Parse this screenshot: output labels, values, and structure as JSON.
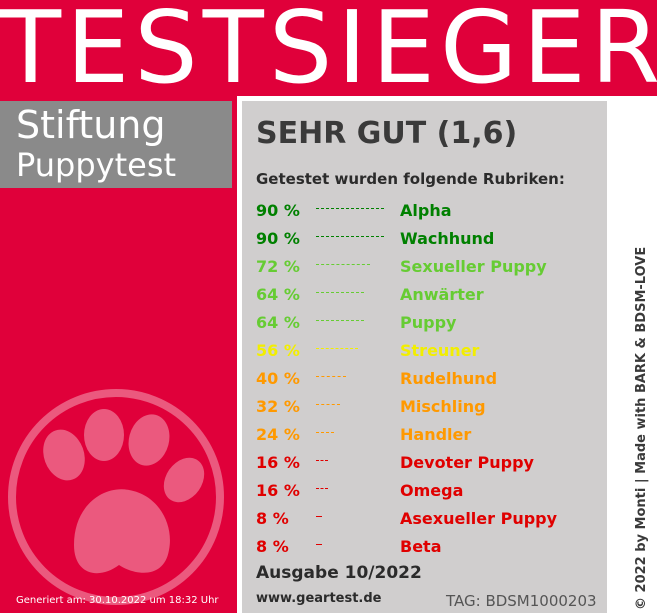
{
  "banner": {
    "title": "TESTSIEGER"
  },
  "brand": {
    "line1": "Stiftung",
    "line2": "Puppytest"
  },
  "result": {
    "grade": "SEHR GUT (1,6)",
    "intro": "Getestet wurden folgende Rubriken:"
  },
  "rubriken": [
    {
      "percent_label": "90 %",
      "name": "Alpha",
      "value": 90,
      "color": "#008000"
    },
    {
      "percent_label": "90 %",
      "name": "Wachhund",
      "value": 90,
      "color": "#008000"
    },
    {
      "percent_label": "72 %",
      "name": "Sexueller Puppy",
      "value": 72,
      "color": "#66cc33"
    },
    {
      "percent_label": "64 %",
      "name": "Anwärter",
      "value": 64,
      "color": "#66cc33"
    },
    {
      "percent_label": "64 %",
      "name": "Puppy",
      "value": 64,
      "color": "#66cc33"
    },
    {
      "percent_label": "56 %",
      "name": "Streuner",
      "value": 56,
      "color": "#f2ee00"
    },
    {
      "percent_label": "40 %",
      "name": "Rudelhund",
      "value": 40,
      "color": "#ff9900"
    },
    {
      "percent_label": "32 %",
      "name": "Mischling",
      "value": 32,
      "color": "#ff9900"
    },
    {
      "percent_label": "24 %",
      "name": "Handler",
      "value": 24,
      "color": "#ff9900"
    },
    {
      "percent_label": "16 %",
      "name": "Devoter Puppy",
      "value": 16,
      "color": "#e00000"
    },
    {
      "percent_label": "16 %",
      "name": "Omega",
      "value": 16,
      "color": "#e00000"
    },
    {
      "percent_label": "8 %",
      "name": "Asexueller Puppy",
      "value": 8,
      "color": "#e00000"
    },
    {
      "percent_label": "8 %",
      "name": "Beta",
      "value": 8,
      "color": "#e00000"
    }
  ],
  "footer": {
    "ausgabe": "Ausgabe 10/2022",
    "url": "www.geartest.de",
    "tag": "TAG: BDSM1000203",
    "generated": "Generiert am: 30.10.2022 um 18:32 Uhr",
    "credit": "© 2022 by Monti | Made with BARK & BDSM-LOVE"
  },
  "colors": {
    "brand_red": "#e0003a",
    "panel_gray": "#d0cece",
    "logo_gray": "#8a8a8a"
  },
  "icons": {
    "paw": "paw-icon"
  }
}
